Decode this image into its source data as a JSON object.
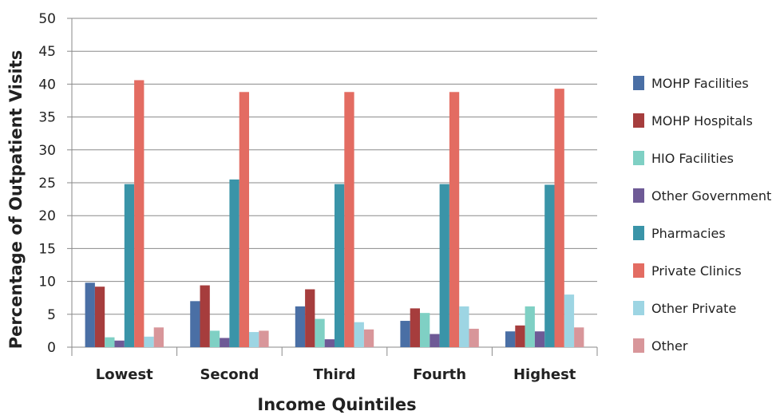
{
  "chart_data": {
    "type": "bar",
    "title": "",
    "xlabel": "Income Quintiles",
    "ylabel": "Percentage of Outpatient Visits",
    "ylim": [
      0,
      50
    ],
    "yticks": [
      0,
      5,
      10,
      15,
      20,
      25,
      30,
      35,
      40,
      45,
      50
    ],
    "grid": true,
    "legend_position": "right",
    "categories": [
      "Lowest",
      "Second",
      "Third",
      "Fourth",
      "Highest"
    ],
    "series": [
      {
        "name": "MOHP Facilities",
        "color": "#4a6fa5",
        "values": [
          9.8,
          7.0,
          6.2,
          4.0,
          2.4
        ]
      },
      {
        "name": "MOHP Hospitals",
        "color": "#a63d3d",
        "values": [
          9.2,
          9.4,
          8.8,
          5.9,
          3.3
        ]
      },
      {
        "name": "HIO Facilities",
        "color": "#7fd0c4",
        "values": [
          1.5,
          2.5,
          4.3,
          5.2,
          6.2
        ]
      },
      {
        "name": "Other Government",
        "color": "#6e5a96",
        "values": [
          1.0,
          1.4,
          1.2,
          2.0,
          2.4
        ]
      },
      {
        "name": "Pharmacies",
        "color": "#3a94a8",
        "values": [
          24.8,
          25.5,
          24.8,
          24.8,
          24.7
        ]
      },
      {
        "name": "Private Clinics",
        "color": "#e36c62",
        "values": [
          40.6,
          38.8,
          38.8,
          38.8,
          39.3
        ]
      },
      {
        "name": "Other Private",
        "color": "#9dd5e3",
        "values": [
          1.6,
          2.3,
          3.8,
          6.2,
          8.0
        ]
      },
      {
        "name": "Other",
        "color": "#d8969a",
        "values": [
          3.0,
          2.5,
          2.7,
          2.8,
          3.0
        ]
      }
    ]
  }
}
